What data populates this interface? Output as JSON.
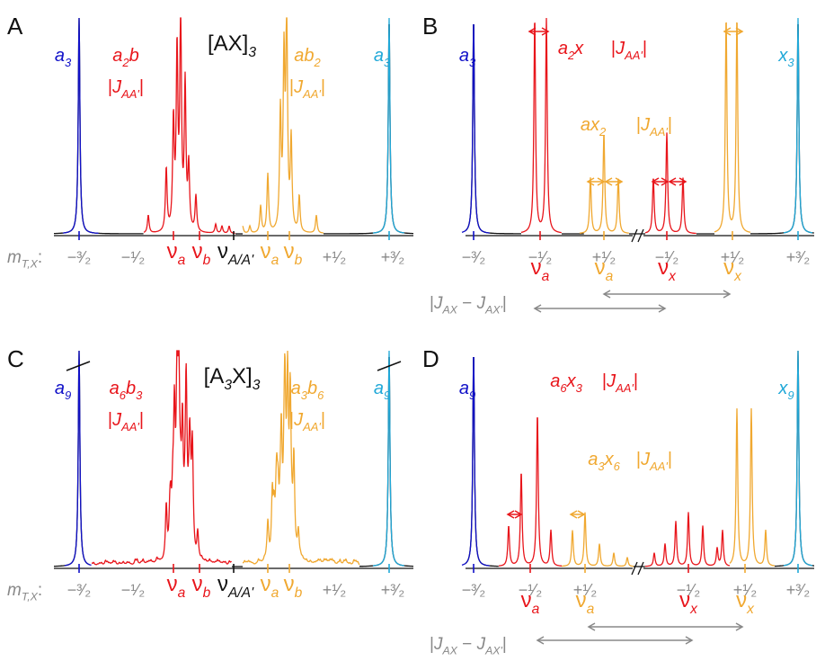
{
  "panels": [
    {
      "letter": "A",
      "title": [
        "[AX]",
        {
          "sub": "3"
        }
      ],
      "labels": [
        [
          {
            "i": "a"
          },
          {
            "sub": "3"
          }
        ],
        [
          {
            "i": "a"
          },
          {
            "sub": "2"
          },
          {
            "i": "b"
          }
        ],
        [
          "|",
          {
            "i": "J"
          },
          {
            "sub": "AA'"
          },
          "|"
        ],
        [
          {
            "i": "a"
          },
          {
            "i": "b"
          },
          {
            "sub": "2"
          }
        ],
        [
          "|",
          {
            "i": "J"
          },
          {
            "sub": "AA'"
          },
          "|"
        ],
        [
          {
            "i": "a"
          },
          {
            "sub": "3"
          }
        ]
      ],
      "axis_label": [
        {
          "i": "m"
        },
        {
          "sub": "T,X"
        },
        ":"
      ],
      "ticks": [
        [
          "−³⁄₂"
        ],
        [
          "−¹⁄₂"
        ],
        [
          "ν",
          {
            "sub": "a"
          }
        ],
        [
          "ν",
          {
            "sub": "b"
          }
        ],
        [
          "ν",
          {
            "sub": "A/A'"
          }
        ],
        [
          "ν",
          {
            "sub": "a"
          }
        ],
        [
          "ν",
          {
            "sub": "b"
          }
        ],
        [
          "+¹⁄₂"
        ],
        [
          "+³⁄₂"
        ]
      ]
    },
    {
      "letter": "B",
      "labels": [
        [
          {
            "i": "a"
          },
          {
            "sub": "3"
          }
        ],
        [
          {
            "i": "a"
          },
          {
            "sub": "2"
          },
          {
            "i": "x"
          }
        ],
        [
          "|",
          {
            "i": "J"
          },
          {
            "sub": "AA'"
          },
          "|"
        ],
        [
          {
            "i": "a"
          },
          {
            "i": "x"
          },
          {
            "sub": "2"
          }
        ],
        [
          "|",
          {
            "i": "J"
          },
          {
            "sub": "AA'"
          },
          "|"
        ],
        [
          {
            "i": "x"
          },
          {
            "sub": "3"
          }
        ]
      ],
      "ticks": [
        [
          "−³⁄₂"
        ],
        [
          "−¹⁄₂"
        ],
        [
          "+¹⁄₂"
        ],
        [
          "−¹⁄₂"
        ],
        [
          "+¹⁄₂"
        ],
        [
          "+³⁄₂"
        ],
        [
          "ν",
          {
            "sub": "a"
          }
        ],
        [
          "ν",
          {
            "sub": "a"
          }
        ],
        [
          "ν",
          {
            "sub": "x"
          }
        ],
        [
          "ν",
          {
            "sub": "x"
          }
        ]
      ],
      "coupling": [
        "|",
        {
          "i": "J"
        },
        {
          "sub": "AX"
        },
        " − ",
        {
          "i": "J"
        },
        {
          "sub": "AX'"
        },
        "|"
      ]
    },
    {
      "letter": "C",
      "title": [
        "[A",
        {
          "sub": "3"
        },
        "X]",
        {
          "sub": "3"
        }
      ],
      "labels": [
        [
          {
            "i": "a"
          },
          {
            "sub": "9"
          }
        ],
        [
          {
            "i": "a"
          },
          {
            "sub": "6"
          },
          {
            "i": "b"
          },
          {
            "sub": "3"
          }
        ],
        [
          "|",
          {
            "i": "J"
          },
          {
            "sub": "AA'"
          },
          "|"
        ],
        [
          {
            "i": "a"
          },
          {
            "sub": "3"
          },
          {
            "i": "b"
          },
          {
            "sub": "6"
          }
        ],
        [
          "|",
          {
            "i": "J"
          },
          {
            "sub": "AA'"
          },
          "|"
        ],
        [
          {
            "i": "a"
          },
          {
            "sub": "9"
          }
        ]
      ],
      "axis_label": [
        {
          "i": "m"
        },
        {
          "sub": "T,X"
        },
        ":"
      ],
      "ticks": [
        [
          "−³⁄₂"
        ],
        [
          "−¹⁄₂"
        ],
        [
          "ν",
          {
            "sub": "a"
          }
        ],
        [
          "ν",
          {
            "sub": "b"
          }
        ],
        [
          "ν",
          {
            "sub": "A/A'"
          }
        ],
        [
          "ν",
          {
            "sub": "a"
          }
        ],
        [
          "ν",
          {
            "sub": "b"
          }
        ],
        [
          "+¹⁄₂"
        ],
        [
          "+³⁄₂"
        ]
      ]
    },
    {
      "letter": "D",
      "labels": [
        [
          {
            "i": "a"
          },
          {
            "sub": "9"
          }
        ],
        [
          {
            "i": "a"
          },
          {
            "sub": "6"
          },
          {
            "i": "x"
          },
          {
            "sub": "3"
          }
        ],
        [
          "|",
          {
            "i": "J"
          },
          {
            "sub": "AA'"
          },
          "|"
        ],
        [
          {
            "i": "a"
          },
          {
            "sub": "3"
          },
          {
            "i": "x"
          },
          {
            "sub": "6"
          }
        ],
        [
          "|",
          {
            "i": "J"
          },
          {
            "sub": "AA'"
          },
          "|"
        ],
        [
          {
            "i": "x"
          },
          {
            "sub": "9"
          }
        ]
      ],
      "ticks": [
        [
          "−³⁄₂"
        ],
        [
          "−¹⁄₂"
        ],
        [
          "+¹⁄₂"
        ],
        [
          "−¹⁄₂"
        ],
        [
          "+¹⁄₂"
        ],
        [
          "+³⁄₂"
        ],
        [
          "ν",
          {
            "sub": "a"
          }
        ],
        [
          "ν",
          {
            "sub": "a"
          }
        ],
        [
          "ν",
          {
            "sub": "x"
          }
        ],
        [
          "ν",
          {
            "sub": "x"
          }
        ]
      ],
      "coupling": [
        "|",
        {
          "i": "J"
        },
        {
          "sub": "AX"
        },
        " − ",
        {
          "i": "J"
        },
        {
          "sub": "AX'"
        },
        "|"
      ]
    }
  ]
}
